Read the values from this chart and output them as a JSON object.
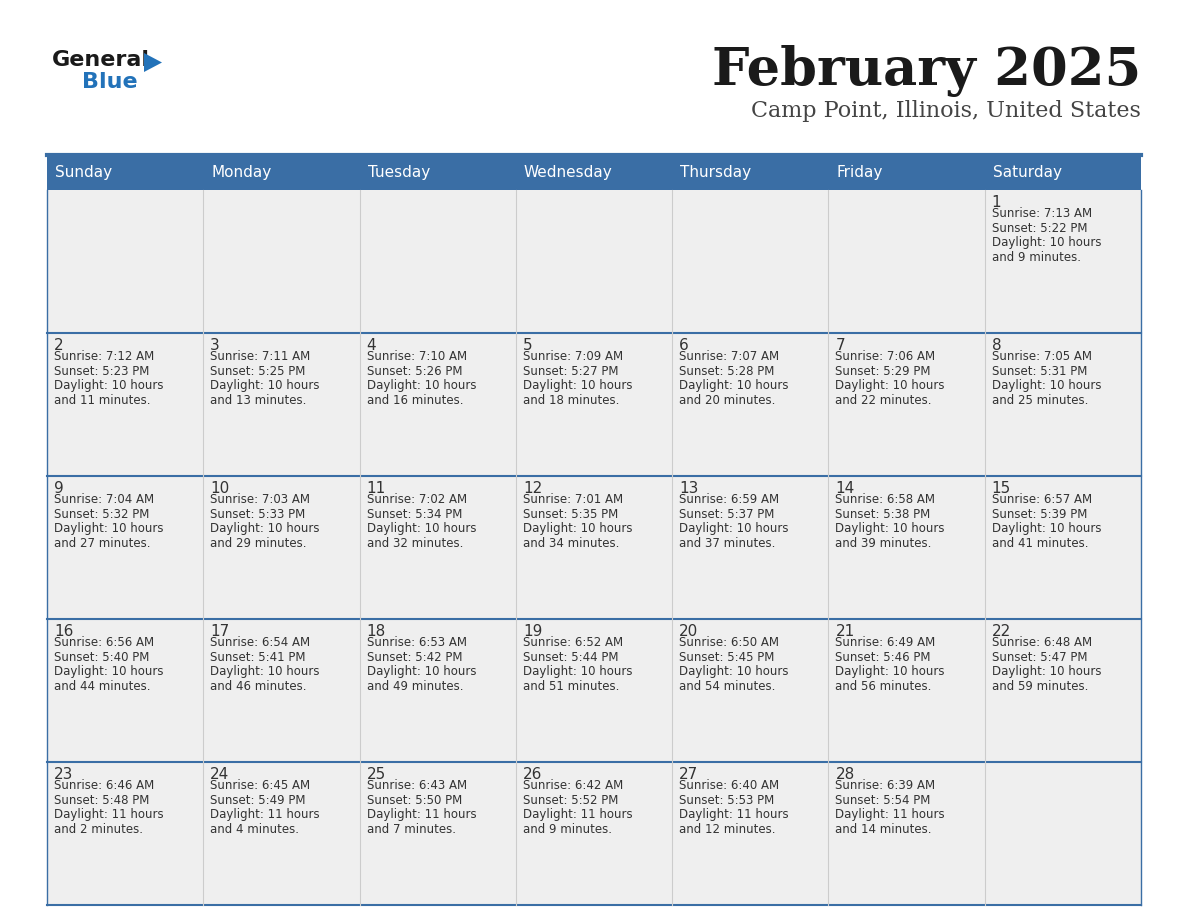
{
  "title": "February 2025",
  "subtitle": "Camp Point, Illinois, United States",
  "days_of_week": [
    "Sunday",
    "Monday",
    "Tuesday",
    "Wednesday",
    "Thursday",
    "Friday",
    "Saturday"
  ],
  "header_bg_color": "#3a6ea5",
  "header_text_color": "#ffffff",
  "cell_bg_color": "#efefef",
  "divider_color": "#3a6ea5",
  "day_num_color": "#333333",
  "cell_text_color": "#333333",
  "title_color": "#1a1a1a",
  "subtitle_color": "#444444",
  "logo_general_color": "#1a1a1a",
  "logo_blue_color": "#2272b9",
  "calendar_data": [
    [
      null,
      null,
      null,
      null,
      null,
      null,
      {
        "day": 1,
        "sunrise": "7:13 AM",
        "sunset": "5:22 PM",
        "daylight": "10 hours",
        "daylight2": "and 9 minutes."
      }
    ],
    [
      {
        "day": 2,
        "sunrise": "7:12 AM",
        "sunset": "5:23 PM",
        "daylight": "10 hours",
        "daylight2": "and 11 minutes."
      },
      {
        "day": 3,
        "sunrise": "7:11 AM",
        "sunset": "5:25 PM",
        "daylight": "10 hours",
        "daylight2": "and 13 minutes."
      },
      {
        "day": 4,
        "sunrise": "7:10 AM",
        "sunset": "5:26 PM",
        "daylight": "10 hours",
        "daylight2": "and 16 minutes."
      },
      {
        "day": 5,
        "sunrise": "7:09 AM",
        "sunset": "5:27 PM",
        "daylight": "10 hours",
        "daylight2": "and 18 minutes."
      },
      {
        "day": 6,
        "sunrise": "7:07 AM",
        "sunset": "5:28 PM",
        "daylight": "10 hours",
        "daylight2": "and 20 minutes."
      },
      {
        "day": 7,
        "sunrise": "7:06 AM",
        "sunset": "5:29 PM",
        "daylight": "10 hours",
        "daylight2": "and 22 minutes."
      },
      {
        "day": 8,
        "sunrise": "7:05 AM",
        "sunset": "5:31 PM",
        "daylight": "10 hours",
        "daylight2": "and 25 minutes."
      }
    ],
    [
      {
        "day": 9,
        "sunrise": "7:04 AM",
        "sunset": "5:32 PM",
        "daylight": "10 hours",
        "daylight2": "and 27 minutes."
      },
      {
        "day": 10,
        "sunrise": "7:03 AM",
        "sunset": "5:33 PM",
        "daylight": "10 hours",
        "daylight2": "and 29 minutes."
      },
      {
        "day": 11,
        "sunrise": "7:02 AM",
        "sunset": "5:34 PM",
        "daylight": "10 hours",
        "daylight2": "and 32 minutes."
      },
      {
        "day": 12,
        "sunrise": "7:01 AM",
        "sunset": "5:35 PM",
        "daylight": "10 hours",
        "daylight2": "and 34 minutes."
      },
      {
        "day": 13,
        "sunrise": "6:59 AM",
        "sunset": "5:37 PM",
        "daylight": "10 hours",
        "daylight2": "and 37 minutes."
      },
      {
        "day": 14,
        "sunrise": "6:58 AM",
        "sunset": "5:38 PM",
        "daylight": "10 hours",
        "daylight2": "and 39 minutes."
      },
      {
        "day": 15,
        "sunrise": "6:57 AM",
        "sunset": "5:39 PM",
        "daylight": "10 hours",
        "daylight2": "and 41 minutes."
      }
    ],
    [
      {
        "day": 16,
        "sunrise": "6:56 AM",
        "sunset": "5:40 PM",
        "daylight": "10 hours",
        "daylight2": "and 44 minutes."
      },
      {
        "day": 17,
        "sunrise": "6:54 AM",
        "sunset": "5:41 PM",
        "daylight": "10 hours",
        "daylight2": "and 46 minutes."
      },
      {
        "day": 18,
        "sunrise": "6:53 AM",
        "sunset": "5:42 PM",
        "daylight": "10 hours",
        "daylight2": "and 49 minutes."
      },
      {
        "day": 19,
        "sunrise": "6:52 AM",
        "sunset": "5:44 PM",
        "daylight": "10 hours",
        "daylight2": "and 51 minutes."
      },
      {
        "day": 20,
        "sunrise": "6:50 AM",
        "sunset": "5:45 PM",
        "daylight": "10 hours",
        "daylight2": "and 54 minutes."
      },
      {
        "day": 21,
        "sunrise": "6:49 AM",
        "sunset": "5:46 PM",
        "daylight": "10 hours",
        "daylight2": "and 56 minutes."
      },
      {
        "day": 22,
        "sunrise": "6:48 AM",
        "sunset": "5:47 PM",
        "daylight": "10 hours",
        "daylight2": "and 59 minutes."
      }
    ],
    [
      {
        "day": 23,
        "sunrise": "6:46 AM",
        "sunset": "5:48 PM",
        "daylight": "11 hours",
        "daylight2": "and 2 minutes."
      },
      {
        "day": 24,
        "sunrise": "6:45 AM",
        "sunset": "5:49 PM",
        "daylight": "11 hours",
        "daylight2": "and 4 minutes."
      },
      {
        "day": 25,
        "sunrise": "6:43 AM",
        "sunset": "5:50 PM",
        "daylight": "11 hours",
        "daylight2": "and 7 minutes."
      },
      {
        "day": 26,
        "sunrise": "6:42 AM",
        "sunset": "5:52 PM",
        "daylight": "11 hours",
        "daylight2": "and 9 minutes."
      },
      {
        "day": 27,
        "sunrise": "6:40 AM",
        "sunset": "5:53 PM",
        "daylight": "11 hours",
        "daylight2": "and 12 minutes."
      },
      {
        "day": 28,
        "sunrise": "6:39 AM",
        "sunset": "5:54 PM",
        "daylight": "11 hours",
        "daylight2": "and 14 minutes."
      },
      null
    ]
  ],
  "figsize": [
    11.88,
    9.18
  ],
  "dpi": 100
}
